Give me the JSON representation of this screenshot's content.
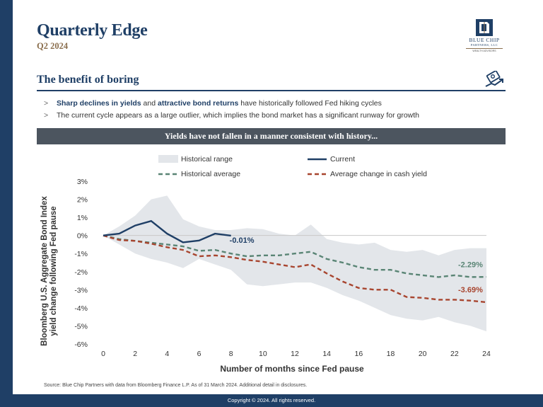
{
  "header": {
    "title": "Quarterly Edge",
    "subtitle": "Q2 2024"
  },
  "logo": {
    "name_line1": "BLUE CHIP",
    "name_line2": "PARTNERS, LLC",
    "tagline": "WEALTH ADVISORS",
    "icon": "blue-chip-logo-icon"
  },
  "section": {
    "title": "The benefit of boring",
    "icon": "money-growth-icon"
  },
  "bullets": [
    {
      "marker": ">",
      "bold1": "Sharp declines in yields",
      "mid": " and ",
      "bold2": "attractive bond returns",
      "rest": " have historically followed Fed hiking cycles"
    },
    {
      "marker": ">",
      "text": "The current cycle appears as a large outlier, which implies the bond market has a significant runway for growth"
    }
  ],
  "chart_banner": "Yields have not fallen in a manner consistent with history...",
  "chart_data": {
    "type": "line",
    "title": "Yields have not fallen in a manner consistent with history...",
    "xlabel": "Number of months since Fed pause",
    "ylabel_line1": "Bloomberg U.S. Aggregate Bond Index",
    "ylabel_line2": "yield change following Fed pause",
    "xlim": [
      0,
      24
    ],
    "ylim": [
      -6,
      3
    ],
    "x_ticks": [
      0,
      2,
      4,
      6,
      8,
      10,
      12,
      14,
      16,
      18,
      20,
      22,
      24
    ],
    "y_ticks": [
      3,
      2,
      1,
      0,
      -1,
      -2,
      -3,
      -4,
      -5,
      -6
    ],
    "y_tick_labels": [
      "3%",
      "2%",
      "1%",
      "0%",
      "-1%",
      "-2%",
      "-3%",
      "-4%",
      "-5%",
      "-6%"
    ],
    "legend": [
      {
        "label": "Historical range",
        "style": "area",
        "color": "#e3e6ea"
      },
      {
        "label": "Current",
        "style": "solid",
        "color": "#1f3f66"
      },
      {
        "label": "Historical average",
        "style": "dashed",
        "color": "#5a8575"
      },
      {
        "label": "Average change in cash yield",
        "style": "dashed",
        "color": "#a8452f"
      }
    ],
    "range": {
      "x": [
        0,
        1,
        2,
        3,
        4,
        5,
        6,
        7,
        8,
        9,
        10,
        11,
        12,
        13,
        14,
        15,
        16,
        17,
        18,
        19,
        20,
        21,
        22,
        23,
        24
      ],
      "upper": [
        0,
        0.5,
        1.1,
        2.0,
        2.2,
        0.9,
        0.5,
        0.3,
        0.3,
        0.4,
        0.35,
        0.1,
        0.0,
        0.6,
        -0.2,
        -0.4,
        -0.5,
        -0.4,
        -0.8,
        -0.9,
        -0.8,
        -1.1,
        -0.8,
        -0.7,
        -0.7
      ],
      "lower": [
        0,
        -0.5,
        -1.0,
        -1.3,
        -1.5,
        -1.8,
        -1.3,
        -1.6,
        -1.9,
        -2.7,
        -2.8,
        -2.7,
        -2.6,
        -2.6,
        -2.9,
        -3.3,
        -3.6,
        -4.0,
        -4.4,
        -4.6,
        -4.7,
        -4.5,
        -4.8,
        -5.0,
        -5.3
      ]
    },
    "series": [
      {
        "name": "Current",
        "x": [
          0,
          1,
          2,
          3,
          4,
          5,
          6,
          7,
          8
        ],
        "values": [
          0,
          0.1,
          0.55,
          0.8,
          0.1,
          -0.38,
          -0.28,
          0.1,
          -0.01
        ],
        "end_label": "-0.01%"
      },
      {
        "name": "Historical average",
        "x": [
          0,
          1,
          2,
          3,
          4,
          5,
          6,
          7,
          8,
          9,
          10,
          11,
          12,
          13,
          14,
          15,
          16,
          17,
          18,
          19,
          20,
          21,
          22,
          23,
          24
        ],
        "values": [
          0,
          -0.2,
          -0.3,
          -0.4,
          -0.5,
          -0.6,
          -0.85,
          -0.8,
          -1.0,
          -1.15,
          -1.1,
          -1.1,
          -1.0,
          -0.9,
          -1.3,
          -1.5,
          -1.75,
          -1.9,
          -1.9,
          -2.1,
          -2.2,
          -2.3,
          -2.2,
          -2.3,
          -2.29
        ],
        "end_label": "-2.29%"
      },
      {
        "name": "Average change in cash yield",
        "x": [
          0,
          1,
          2,
          3,
          4,
          5,
          6,
          7,
          8,
          9,
          10,
          11,
          12,
          13,
          14,
          15,
          16,
          17,
          18,
          19,
          20,
          21,
          22,
          23,
          24
        ],
        "values": [
          0,
          -0.25,
          -0.3,
          -0.45,
          -0.65,
          -0.8,
          -1.15,
          -1.1,
          -1.2,
          -1.35,
          -1.45,
          -1.6,
          -1.75,
          -1.6,
          -2.1,
          -2.55,
          -2.9,
          -3.0,
          -3.0,
          -3.4,
          -3.45,
          -3.55,
          -3.55,
          -3.6,
          -3.69
        ],
        "end_label": "-3.69%"
      }
    ]
  },
  "source": "Source: Blue Chip Partners with data from Bloomberg Finance L.P. As of 31 March 2024. Additional detail in disclosures.",
  "footer": "Copyright © 2024. All rights reserved."
}
